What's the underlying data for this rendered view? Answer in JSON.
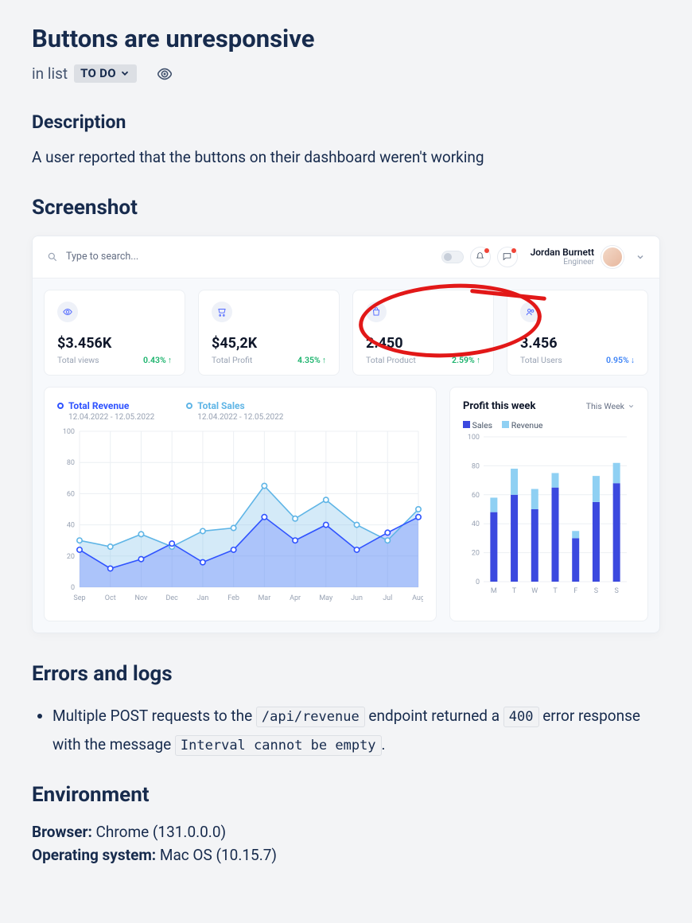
{
  "title": "Buttons are unresponsive",
  "meta": {
    "prefix": "in list",
    "chip": "TO DO"
  },
  "description_heading": "Description",
  "description_text": "A user reported that the buttons on their dashboard weren't working",
  "screenshot_heading": "Screenshot",
  "errors_heading": "Errors and logs",
  "errors": {
    "line_pre": "Multiple POST requests to the ",
    "code1": "/api/revenue",
    "mid": " endpoint returned a ",
    "code2": "400",
    "mid2": " error response with the message ",
    "code3": "Interval cannot be empty",
    "tail": "."
  },
  "environment_heading": "Environment",
  "env": {
    "browser_label": "Browser:",
    "browser_value": " Chrome (131.0.0.0)",
    "os_label": "Operating system:",
    "os_value": " Mac OS (10.15.7)"
  },
  "dashboard": {
    "search_placeholder": "Type to search...",
    "user": {
      "name": "Jordan Burnett",
      "role": "Engineer"
    },
    "cards": [
      {
        "value": "$3.456K",
        "label": "Total views",
        "pct": "0.43%",
        "dir": "up"
      },
      {
        "value": "$45,2K",
        "label": "Total Profit",
        "pct": "4.35%",
        "dir": "up"
      },
      {
        "value": "2.450",
        "label": "Total Product",
        "pct": "2.59%",
        "dir": "up"
      },
      {
        "value": "3.456",
        "label": "Total Users",
        "pct": "0.95%",
        "dir": "down"
      }
    ],
    "revenue_chart": {
      "series": [
        {
          "name": "Total Revenue",
          "color": "#2f53ff",
          "range": "12.04.2022 - 12.05.2022"
        },
        {
          "name": "Total Sales",
          "color": "#5fb5e6",
          "range": "12.04.2022 - 12.05.2022"
        }
      ],
      "ylim": [
        0,
        100
      ],
      "ytick_step": 20,
      "x_labels": [
        "Sep",
        "Oct",
        "Nov",
        "Dec",
        "Jan",
        "Feb",
        "Mar",
        "Apr",
        "May",
        "Jun",
        "Jul",
        "Aug"
      ],
      "revenue": [
        24,
        12,
        18,
        28,
        16,
        24,
        45,
        30,
        40,
        24,
        35,
        45
      ],
      "sales": [
        30,
        26,
        34,
        26,
        36,
        38,
        65,
        44,
        56,
        40,
        30,
        50
      ],
      "fill_revenue": "rgba(80,108,255,0.30)",
      "fill_sales": "rgba(131,195,236,0.35)",
      "grid_color": "#eceff3"
    },
    "profit_chart": {
      "title": "Profit this week",
      "dropdown": "This Week",
      "legend": [
        {
          "label": "Sales",
          "color": "#3b49df"
        },
        {
          "label": "Revenue",
          "color": "#8fd0f3"
        }
      ],
      "ylim": [
        0,
        100
      ],
      "ytick_step": 20,
      "x_labels": [
        "M",
        "T",
        "W",
        "T",
        "F",
        "S",
        "S"
      ],
      "sales": [
        48,
        60,
        50,
        65,
        30,
        55,
        68
      ],
      "revenue": [
        10,
        18,
        14,
        10,
        5,
        18,
        14
      ],
      "grid_color": "#eceff3"
    },
    "annotation_color": "#e21818"
  }
}
